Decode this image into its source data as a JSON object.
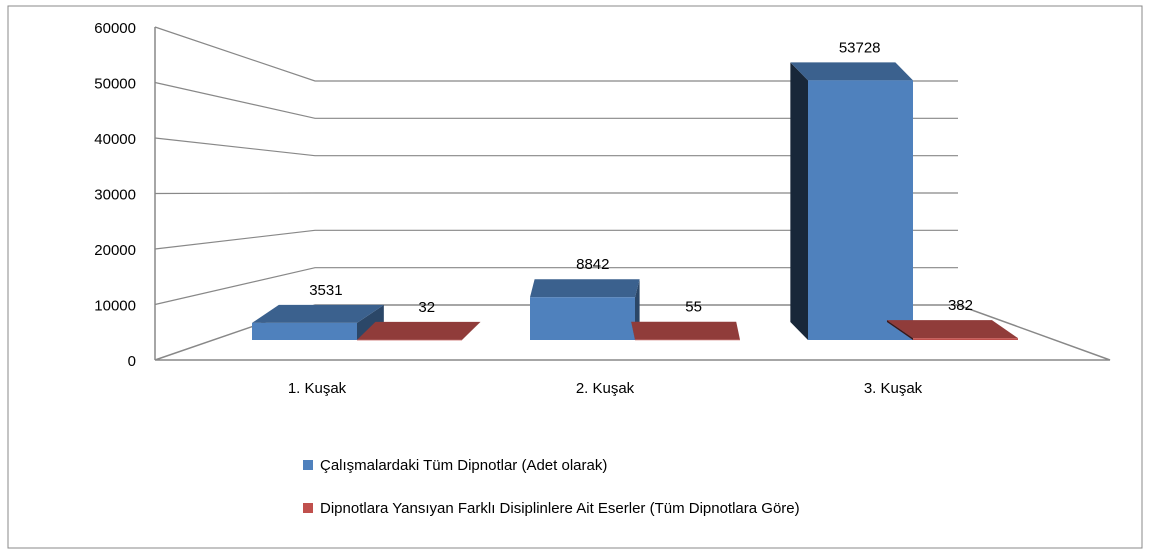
{
  "chart_data": {
    "type": "bar3d",
    "categories": [
      "1. Kuşak",
      "2. Kuşak",
      "3. Kuşak"
    ],
    "series": [
      {
        "name": "Çalışmalardaki Tüm Dipnotlar (Adet olarak)",
        "color": "#4f81bd",
        "values": [
          3531,
          8842,
          53728
        ]
      },
      {
        "name": "Dipnotlara Yansıyan Farklı Disiplinlere Ait Eserler (Tüm Dipnotlara Göre)",
        "color": "#c0504d",
        "values": [
          32,
          55,
          382
        ]
      }
    ],
    "ylim": [
      0,
      60000
    ],
    "yticks": [
      0,
      10000,
      20000,
      30000,
      40000,
      50000,
      60000
    ],
    "grid": true,
    "legend": "bottom"
  }
}
